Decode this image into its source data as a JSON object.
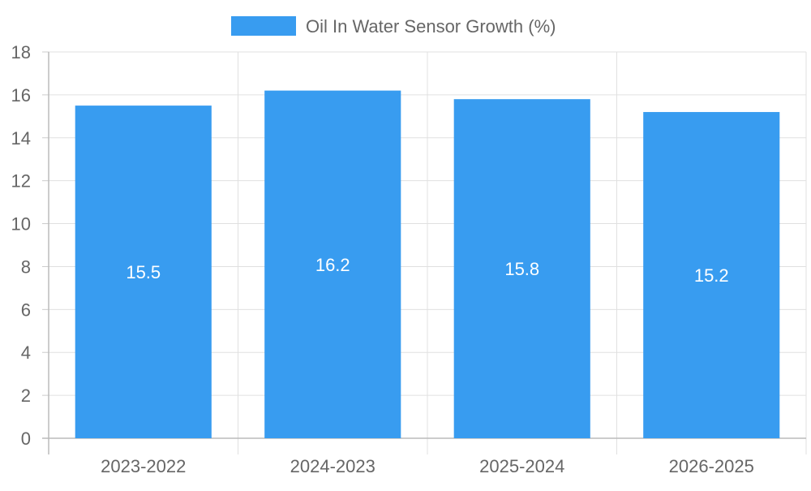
{
  "chart_data": {
    "type": "bar",
    "title": "",
    "xlabel": "",
    "ylabel": "",
    "categories": [
      "2023-2022",
      "2024-2023",
      "2025-2024",
      "2026-2025"
    ],
    "series": [
      {
        "name": "Oil In Water Sensor Growth (%)",
        "values": [
          15.5,
          16.2,
          15.8,
          15.2
        ],
        "color": "#389CF0"
      }
    ],
    "data_labels": [
      "15.5",
      "16.2",
      "15.8",
      "15.2"
    ],
    "ylim": [
      0,
      18
    ],
    "y_ticks": [
      "0",
      "2",
      "4",
      "6",
      "8",
      "10",
      "12",
      "14",
      "16",
      "18"
    ],
    "grid": true,
    "legend_position": "top-center"
  }
}
